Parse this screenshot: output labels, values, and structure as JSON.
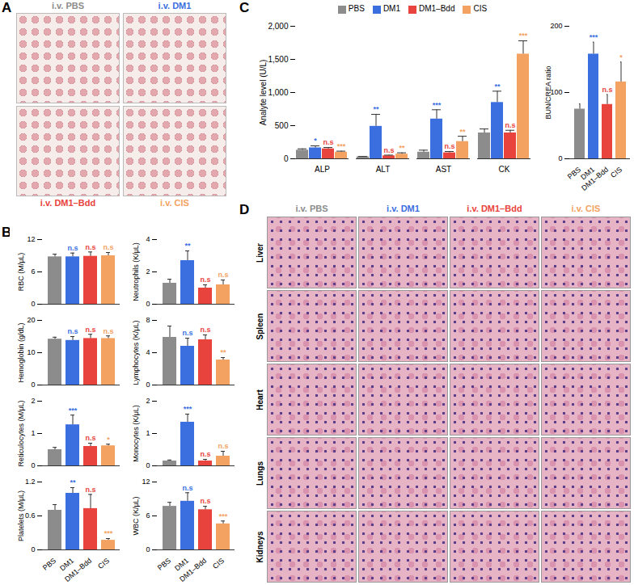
{
  "panel_labels": [
    "A",
    "B",
    "C",
    "D"
  ],
  "chart_data": [
    {
      "type": "bar",
      "y_label": "RBC (M/μL)",
      "categories": [
        "PBS",
        "DM1",
        "DM1–Bdd",
        "CIS"
      ],
      "values": [
        8.8,
        8.8,
        8.9,
        9.0
      ],
      "errors": [
        0.5,
        0.7,
        0.8,
        0.6
      ],
      "annotations": [
        null,
        "n.s",
        "n.s",
        "n.s"
      ],
      "colors": [
        "#8c8c8c",
        "#3b6fe0",
        "#e8433c",
        "#f3a261"
      ],
      "ylim": [
        0,
        12
      ],
      "yticks": [
        0,
        6,
        12
      ],
      "tick_labels": "y"
    },
    {
      "type": "bar",
      "y_label": "Neutrophils (K/μL)",
      "categories": [
        "PBS",
        "DM1",
        "DM1–Bdd",
        "CIS"
      ],
      "values": [
        1.3,
        2.7,
        1.0,
        1.2
      ],
      "errors": [
        0.25,
        0.6,
        0.2,
        0.3
      ],
      "annotations": [
        null,
        "**",
        "n.s",
        "n.s"
      ],
      "colors": [
        "#8c8c8c",
        "#3b6fe0",
        "#e8433c",
        "#f3a261"
      ],
      "ylim": [
        0,
        4
      ],
      "yticks": [
        0,
        2,
        4
      ],
      "tick_labels": "y"
    },
    {
      "type": "bar",
      "y_label": "Hemoglobin (g/dL)",
      "categories": [
        "PBS",
        "DM1",
        "DM1–Bdd",
        "CIS"
      ],
      "values": [
        14.2,
        13.8,
        14.4,
        14.4
      ],
      "errors": [
        0.6,
        1.2,
        1.3,
        0.8
      ],
      "annotations": [
        null,
        "n.s",
        "n.s",
        "n.s"
      ],
      "colors": [
        "#8c8c8c",
        "#3b6fe0",
        "#e8433c",
        "#f3a261"
      ],
      "ylim": [
        0,
        20
      ],
      "yticks": [
        0,
        10,
        20
      ],
      "tick_labels": "y"
    },
    {
      "type": "bar",
      "y_label": "Lymphocytes (K/μL)",
      "categories": [
        "PBS",
        "DM1",
        "DM1–Bdd",
        "CIS"
      ],
      "values": [
        5.9,
        4.8,
        5.6,
        3.1
      ],
      "errors": [
        1.4,
        1.0,
        0.6,
        0.3
      ],
      "annotations": [
        null,
        "n.s",
        "n.s",
        "**"
      ],
      "colors": [
        "#8c8c8c",
        "#3b6fe0",
        "#e8433c",
        "#f3a261"
      ],
      "ylim": [
        0,
        8
      ],
      "yticks": [
        0,
        4,
        8
      ],
      "tick_labels": "y"
    },
    {
      "type": "bar",
      "y_label": "Reticulocytes (M/μL)",
      "categories": [
        "PBS",
        "DM1",
        "DM1–Bdd",
        "CIS"
      ],
      "values": [
        0.5,
        1.27,
        0.6,
        0.62
      ],
      "errors": [
        0.07,
        0.3,
        0.1,
        0.05
      ],
      "annotations": [
        null,
        "***",
        "n.s",
        "*"
      ],
      "colors": [
        "#8c8c8c",
        "#3b6fe0",
        "#e8433c",
        "#f3a261"
      ],
      "ylim": [
        0,
        2
      ],
      "yticks": [
        0,
        1,
        2
      ],
      "tick_labels": "y"
    },
    {
      "type": "bar",
      "y_label": "Monocytes (K/μL)",
      "categories": [
        "PBS",
        "DM1",
        "DM1–Bdd",
        "CIS"
      ],
      "values": [
        0.15,
        1.35,
        0.15,
        0.3
      ],
      "errors": [
        0.03,
        0.25,
        0.05,
        0.15
      ],
      "annotations": [
        null,
        "***",
        "n.s",
        "n.s"
      ],
      "colors": [
        "#8c8c8c",
        "#3b6fe0",
        "#e8433c",
        "#f3a261"
      ],
      "ylim": [
        0,
        2
      ],
      "yticks": [
        0,
        1,
        2
      ],
      "tick_labels": "y"
    },
    {
      "type": "bar",
      "y_label": "Platelets (M/μL)",
      "categories": [
        "PBS",
        "DM1",
        "DM1–Bdd",
        "CIS"
      ],
      "values": [
        0.7,
        1.0,
        0.73,
        0.17
      ],
      "errors": [
        0.1,
        0.1,
        0.25,
        0.03
      ],
      "annotations": [
        null,
        "**",
        "n.s",
        "***"
      ],
      "colors": [
        "#8c8c8c",
        "#3b6fe0",
        "#e8433c",
        "#f3a261"
      ],
      "ylim": [
        0,
        1.2
      ],
      "yticks": [
        0,
        0.6,
        1.2
      ]
    },
    {
      "type": "bar",
      "y_label": "WBC (K/μL)",
      "categories": [
        "PBS",
        "DM1",
        "DM1–Bdd",
        "CIS"
      ],
      "values": [
        7.7,
        8.6,
        7.1,
        4.6
      ],
      "errors": [
        0.7,
        1.5,
        0.6,
        0.5
      ],
      "annotations": [
        null,
        "n.s",
        "n.s",
        "***"
      ],
      "colors": [
        "#8c8c8c",
        "#3b6fe0",
        "#e8433c",
        "#f3a261"
      ],
      "ylim": [
        0,
        12
      ],
      "yticks": [
        0,
        6,
        12
      ]
    },
    {
      "type": "bar",
      "y_label": "Analyte level (U/L)",
      "categories": [
        "ALP",
        "ALT",
        "AST",
        "CK"
      ],
      "legend": "top",
      "series": [
        {
          "name": "PBS",
          "color": "#8c8c8c",
          "values": [
            130,
            30,
            100,
            390
          ],
          "errors": [
            20,
            5,
            30,
            60
          ],
          "annotations": [
            null,
            null,
            null,
            null
          ]
        },
        {
          "name": "DM1",
          "color": "#3b6fe0",
          "values": [
            165,
            490,
            600,
            850
          ],
          "errors": [
            30,
            180,
            140,
            170
          ],
          "annotations": [
            "*",
            "**",
            "***",
            "**"
          ]
        },
        {
          "name": "DM1–Bdd",
          "color": "#e8433c",
          "values": [
            150,
            45,
            90,
            390
          ],
          "errors": [
            20,
            10,
            20,
            40
          ],
          "annotations": [
            "n.s",
            "n.s",
            "n.s",
            "n.s"
          ]
        },
        {
          "name": "CIS",
          "color": "#f3a261",
          "values": [
            100,
            70,
            260,
            1580
          ],
          "errors": [
            15,
            20,
            80,
            200
          ],
          "annotations": [
            "***",
            "**",
            "**",
            "***"
          ]
        }
      ],
      "ylim": [
        0,
        2000
      ],
      "yticks": [
        0,
        500,
        {
          "value": 1000,
          "label": "1,000"
        },
        {
          "value": 1500,
          "label": "1,500"
        },
        {
          "value": 2000,
          "label": "2,000"
        }
      ]
    },
    {
      "type": "bar",
      "y_label": "BUN/CREA ratio",
      "categories": [
        "PBS",
        "DM1",
        "DM1–Bdd",
        "CIS"
      ],
      "values": [
        75,
        158,
        82,
        116
      ],
      "errors": [
        8,
        18,
        15,
        30
      ],
      "annotations": [
        null,
        "***",
        "n.s",
        "*"
      ],
      "colors": [
        "#8c8c8c",
        "#3b6fe0",
        "#e8433c",
        "#f3a261"
      ],
      "ylim": [
        0,
        200
      ],
      "yticks": [
        0,
        100,
        200
      ]
    }
  ],
  "image_panels": {
    "A": {
      "labels": [
        {
          "text": "i.v. PBS",
          "color": "#8c8c8c"
        },
        {
          "text": "i.v. DM1",
          "color": "#3b6fe0"
        },
        {
          "text": "i.v. DM1–Bdd",
          "color": "#e8433c"
        },
        {
          "text": "i.v. CIS",
          "color": "#f3a261"
        }
      ]
    },
    "D": {
      "columns": [
        {
          "text": "i.v. PBS",
          "color": "#8c8c8c"
        },
        {
          "text": "i.v. DM1",
          "color": "#3b6fe0"
        },
        {
          "text": "i.v. DM1–Bdd",
          "color": "#e8433c"
        },
        {
          "text": "i.v. CIS",
          "color": "#f3a261"
        }
      ],
      "rows": [
        "Liver",
        "Spleen",
        "Heart",
        "Lungs",
        "Kidneys"
      ]
    }
  }
}
